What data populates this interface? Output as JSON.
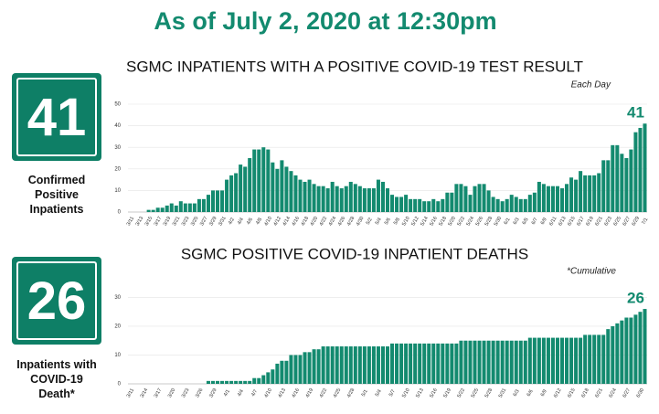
{
  "header": {
    "title": "As of July 2, 2020 at 12:30pm"
  },
  "chart_data": [
    {
      "type": "bar",
      "title": "SGMC INPATIENTS WITH A POSITIVE COVID-19 TEST RESULT",
      "note": "Each Day",
      "color": "#138a6f",
      "kpi": {
        "value": 41,
        "label": [
          "Confirmed",
          "Positive",
          "Inpatients"
        ]
      },
      "categories": [
        "3/11",
        null,
        "3/13",
        null,
        "3/15",
        null,
        "3/17",
        null,
        "3/19",
        null,
        "3/21",
        null,
        "3/23",
        null,
        "3/25",
        null,
        "3/27",
        null,
        "3/29",
        null,
        "3/31",
        null,
        "4/2",
        null,
        "4/4",
        null,
        "4/6",
        null,
        "4/8",
        null,
        "4/10",
        null,
        "4/12",
        null,
        "4/14",
        null,
        "4/16",
        null,
        "4/18",
        null,
        "4/20",
        null,
        "4/22",
        null,
        "4/24",
        null,
        "4/26",
        null,
        "4/28",
        null,
        "4/30",
        null,
        "5/2",
        null,
        "5/4",
        null,
        "5/6",
        null,
        "5/8",
        null,
        "5/10",
        null,
        "5/12",
        null,
        "5/14",
        null,
        "5/16",
        null,
        "5/18",
        null,
        "5/20",
        null,
        "5/22",
        null,
        "5/24",
        null,
        "5/26",
        null,
        "5/28",
        null,
        "5/30",
        null,
        "6/1",
        null,
        "6/3",
        null,
        "6/5",
        null,
        "6/7",
        null,
        "6/9",
        null,
        "6/11",
        null,
        "6/13",
        null,
        "6/15",
        null,
        "6/17",
        null,
        "6/19",
        null,
        "6/21",
        null,
        "6/23",
        null,
        "6/25",
        null,
        "6/27",
        null,
        "6/29",
        null,
        "7/1"
      ],
      "values": [
        0,
        0,
        0,
        0,
        1,
        1,
        2,
        2,
        3,
        4,
        3,
        5,
        4,
        4,
        4,
        6,
        6,
        8,
        10,
        10,
        10,
        15,
        17,
        18,
        22,
        21,
        25,
        29,
        29,
        30,
        29,
        23,
        20,
        24,
        21,
        19,
        17,
        15,
        14,
        15,
        13,
        12,
        12,
        11,
        14,
        12,
        11,
        12,
        14,
        13,
        12,
        11,
        11,
        11,
        15,
        14,
        11,
        8,
        7,
        7,
        8,
        6,
        6,
        6,
        5,
        5,
        6,
        5,
        6,
        9,
        9,
        13,
        13,
        12,
        8,
        12,
        13,
        13,
        10,
        7,
        6,
        5,
        6,
        8,
        7,
        6,
        6,
        8,
        9,
        14,
        13,
        12,
        12,
        12,
        11,
        13,
        16,
        15,
        19,
        17,
        17,
        17,
        18,
        24,
        24,
        31,
        31,
        27,
        25,
        29,
        37,
        39,
        41
      ],
      "ylim": [
        0,
        50
      ],
      "yticks": [
        0,
        10,
        20,
        30,
        40,
        50
      ]
    },
    {
      "type": "bar",
      "title": "SGMC POSITIVE COVID-19 INPATIENT DEATHS",
      "note": "*Cumulative",
      "color": "#138a6f",
      "kpi": {
        "value": 26,
        "label": [
          "Inpatients with",
          "COVID-19",
          "Death*"
        ]
      },
      "categories": [
        "3/11",
        null,
        null,
        "3/14",
        null,
        null,
        "3/17",
        null,
        null,
        "3/20",
        null,
        null,
        "3/23",
        null,
        null,
        "3/26",
        null,
        null,
        "3/29",
        null,
        null,
        "4/1",
        null,
        null,
        "4/4",
        null,
        null,
        "4/7",
        null,
        null,
        "4/10",
        null,
        null,
        "4/13",
        null,
        null,
        "4/16",
        null,
        null,
        "4/19",
        null,
        null,
        "4/22",
        null,
        null,
        "4/25",
        null,
        null,
        "4/28",
        null,
        null,
        "5/1",
        null,
        null,
        "5/4",
        null,
        null,
        "5/7",
        null,
        null,
        "5/10",
        null,
        null,
        "5/13",
        null,
        null,
        "5/16",
        null,
        null,
        "5/19",
        null,
        null,
        "5/22",
        null,
        null,
        "5/25",
        null,
        null,
        "5/28",
        null,
        null,
        "5/31",
        null,
        null,
        "6/3",
        null,
        null,
        "6/6",
        null,
        null,
        "6/9",
        null,
        null,
        "6/12",
        null,
        null,
        "6/15",
        null,
        null,
        "6/18",
        null,
        null,
        "6/21",
        null,
        null,
        "6/24",
        null,
        null,
        "6/27",
        null,
        null,
        "6/30",
        null
      ],
      "values": [
        0,
        0,
        0,
        0,
        0,
        0,
        0,
        0,
        0,
        0,
        0,
        0,
        0,
        0,
        0,
        0,
        0,
        1,
        1,
        1,
        1,
        1,
        1,
        1,
        1,
        1,
        1,
        2,
        2,
        3,
        4,
        5,
        7,
        8,
        8,
        10,
        10,
        10,
        11,
        11,
        12,
        12,
        13,
        13,
        13,
        13,
        13,
        13,
        13,
        13,
        13,
        13,
        13,
        13,
        13,
        13,
        13,
        14,
        14,
        14,
        14,
        14,
        14,
        14,
        14,
        14,
        14,
        14,
        14,
        14,
        14,
        14,
        15,
        15,
        15,
        15,
        15,
        15,
        15,
        15,
        15,
        15,
        15,
        15,
        15,
        15,
        15,
        16,
        16,
        16,
        16,
        16,
        16,
        16,
        16,
        16,
        16,
        16,
        16,
        17,
        17,
        17,
        17,
        17,
        19,
        20,
        21,
        22,
        23,
        23,
        24,
        25,
        26
      ],
      "ylim": [
        0,
        33
      ],
      "yticks": [
        0,
        10,
        20,
        30
      ]
    }
  ]
}
